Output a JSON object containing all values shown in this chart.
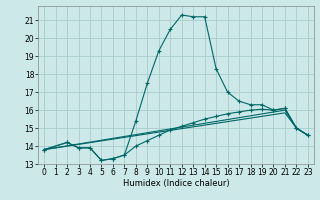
{
  "title": "",
  "xlabel": "Humidex (Indice chaleur)",
  "bg_color": "#cce8e8",
  "grid_color": "#aacccc",
  "line_color": "#006666",
  "xlim": [
    -0.5,
    23.5
  ],
  "ylim": [
    13,
    21.8
  ],
  "yticks": [
    13,
    14,
    15,
    16,
    17,
    18,
    19,
    20,
    21
  ],
  "xticks": [
    0,
    1,
    2,
    3,
    4,
    5,
    6,
    7,
    8,
    9,
    10,
    11,
    12,
    13,
    14,
    15,
    16,
    17,
    18,
    19,
    20,
    21,
    22,
    23
  ],
  "series": [
    {
      "x": [
        0,
        2,
        3,
        4,
        5,
        6,
        7,
        8,
        9,
        10,
        11,
        12,
        13,
        14,
        15,
        16,
        17,
        18,
        19,
        20,
        21,
        22,
        23
      ],
      "y": [
        13.8,
        14.2,
        13.9,
        13.9,
        13.2,
        13.3,
        13.5,
        15.4,
        17.5,
        19.3,
        20.5,
        21.3,
        21.2,
        21.2,
        18.3,
        17.0,
        16.5,
        16.3,
        16.3,
        16.0,
        16.1,
        15.0,
        14.6
      ],
      "markers": true
    },
    {
      "x": [
        0,
        2,
        3,
        4,
        5,
        6,
        7,
        8,
        9,
        10,
        11,
        12,
        13,
        14,
        15,
        16,
        17,
        18,
        19,
        20,
        21,
        22,
        23
      ],
      "y": [
        13.8,
        14.2,
        13.9,
        13.9,
        13.2,
        13.3,
        13.5,
        14.0,
        14.3,
        14.6,
        14.9,
        15.1,
        15.3,
        15.5,
        15.65,
        15.8,
        15.9,
        16.0,
        16.05,
        16.0,
        16.1,
        15.0,
        14.6
      ],
      "markers": true
    },
    {
      "x": [
        0,
        21,
        22,
        23
      ],
      "y": [
        13.8,
        15.85,
        15.0,
        14.6
      ],
      "markers": false
    },
    {
      "x": [
        0,
        21,
        22,
        23
      ],
      "y": [
        13.8,
        16.0,
        15.0,
        14.6
      ],
      "markers": false
    }
  ]
}
